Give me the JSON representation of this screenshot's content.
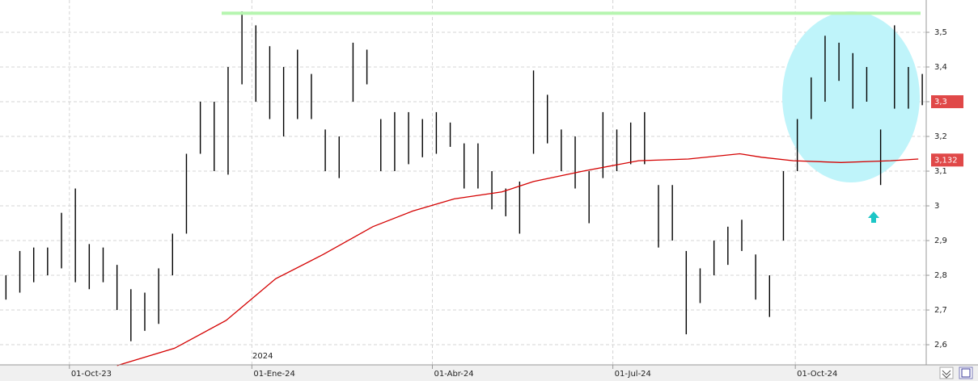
{
  "chart_data": {
    "type": "hl",
    "x": [
      "2023-08-30",
      "2023-09-06",
      "2023-09-13",
      "2023-09-20",
      "2023-09-27",
      "2023-10-04",
      "2023-10-11",
      "2023-10-18",
      "2023-10-25",
      "2023-11-01",
      "2023-11-08",
      "2023-11-15",
      "2023-11-22",
      "2023-11-29",
      "2023-12-06",
      "2023-12-13",
      "2023-12-20",
      "2023-12-27",
      "2024-01-03",
      "2024-01-10",
      "2024-01-17",
      "2024-01-24",
      "2024-01-31",
      "2024-02-07",
      "2024-02-14",
      "2024-02-21",
      "2024-02-28",
      "2024-03-06",
      "2024-03-13",
      "2024-03-20",
      "2024-03-27",
      "2024-04-03",
      "2024-04-10",
      "2024-04-17",
      "2024-04-24",
      "2024-05-01",
      "2024-05-08",
      "2024-05-15",
      "2024-05-22",
      "2024-05-29",
      "2024-06-05",
      "2024-06-12",
      "2024-06-19",
      "2024-06-26",
      "2024-07-03",
      "2024-07-10",
      "2024-07-17",
      "2024-07-24",
      "2024-07-31",
      "2024-08-07",
      "2024-08-14",
      "2024-08-21",
      "2024-08-28",
      "2024-09-04",
      "2024-09-11",
      "2024-09-18",
      "2024-09-25",
      "2024-10-02",
      "2024-10-09",
      "2024-10-16",
      "2024-10-23",
      "2024-10-30",
      "2024-11-06",
      "2024-11-13",
      "2024-11-20",
      "2024-11-27",
      "2024-12-04"
    ],
    "high": [
      2.8,
      2.87,
      2.88,
      2.88,
      2.98,
      3.05,
      2.89,
      2.88,
      2.83,
      2.76,
      2.75,
      2.82,
      2.92,
      3.15,
      3.3,
      3.3,
      3.4,
      3.56,
      3.52,
      3.46,
      3.4,
      3.45,
      3.38,
      3.22,
      3.2,
      3.47,
      3.45,
      3.25,
      3.27,
      3.27,
      3.25,
      3.27,
      3.24,
      3.18,
      3.18,
      3.1,
      3.05,
      3.07,
      3.39,
      3.32,
      3.22,
      3.2,
      3.1,
      3.27,
      3.22,
      3.24,
      3.27,
      3.06,
      3.06,
      2.87,
      2.82,
      2.9,
      2.94,
      2.96,
      2.86,
      2.8,
      3.1,
      3.25,
      3.37,
      3.49,
      3.47,
      3.44,
      3.4,
      3.22,
      3.52,
      3.4,
      3.38
    ],
    "low": [
      2.73,
      2.75,
      2.78,
      2.8,
      2.82,
      2.78,
      2.76,
      2.78,
      2.7,
      2.61,
      2.64,
      2.66,
      2.8,
      2.92,
      3.15,
      3.1,
      3.09,
      3.35,
      3.3,
      3.25,
      3.2,
      3.25,
      3.25,
      3.1,
      3.08,
      3.3,
      3.35,
      3.1,
      3.1,
      3.12,
      3.14,
      3.15,
      3.17,
      3.05,
      3.05,
      2.99,
      2.97,
      2.92,
      3.15,
      3.18,
      3.1,
      3.05,
      2.95,
      3.08,
      3.1,
      3.12,
      3.12,
      2.88,
      2.9,
      2.63,
      2.72,
      2.8,
      2.83,
      2.87,
      2.73,
      2.68,
      2.9,
      3.1,
      3.25,
      3.3,
      3.36,
      3.28,
      3.3,
      3.06,
      3.28,
      3.28,
      3.29
    ],
    "color": "#000000",
    "moving_average": {
      "x": [
        "2023-10-25",
        "2023-11-23",
        "2023-12-19",
        "2024-01-13",
        "2024-02-06",
        "2024-03-02",
        "2024-03-22",
        "2024-04-12",
        "2024-05-06",
        "2024-05-22",
        "2024-06-16",
        "2024-07-14",
        "2024-08-08",
        "2024-09-03",
        "2024-09-14",
        "2024-09-30",
        "2024-10-24",
        "2024-11-18",
        "2024-12-02"
      ],
      "values": [
        2.54,
        2.59,
        2.67,
        2.79,
        2.86,
        2.94,
        2.985,
        3.02,
        3.04,
        3.07,
        3.1,
        3.13,
        3.135,
        3.15,
        3.14,
        3.13,
        3.125,
        3.13,
        3.135
      ],
      "color": "#d40000"
    },
    "resistance": {
      "value": 3.555,
      "color": "#b6f5b0"
    },
    "last_price": {
      "value": 3.3,
      "label": "3,3"
    },
    "ma_value": {
      "value": 3.132,
      "label": "3,132"
    },
    "year_label": "2024",
    "xlim": [
      "2023-08-27",
      "2024-12-06"
    ],
    "xticks": [
      {
        "value": "2023-10-01",
        "label": "01-Oct-23"
      },
      {
        "value": "2024-01-01",
        "label": "01-Ene-24"
      },
      {
        "value": "2024-04-01",
        "label": "01-Abr-24"
      },
      {
        "value": "2024-07-01",
        "label": "01-Jul-24"
      },
      {
        "value": "2024-10-01",
        "label": "01-Oct-24"
      }
    ],
    "ylim": [
      2.542,
      3.593
    ],
    "yticks": [
      {
        "value": 2.6,
        "label": "2,6"
      },
      {
        "value": 2.7,
        "label": "2,7"
      },
      {
        "value": 2.8,
        "label": "2,8"
      },
      {
        "value": 2.9,
        "label": "2,9"
      },
      3,
      {
        "value": 3.1,
        "label": "3,1"
      },
      {
        "value": 3.2,
        "label": "3,2"
      },
      {
        "value": 3.3,
        "label": "3,3"
      },
      {
        "value": 3.4,
        "label": "3,4"
      },
      {
        "value": 3.5,
        "label": "3,5"
      }
    ],
    "grid": true
  }
}
